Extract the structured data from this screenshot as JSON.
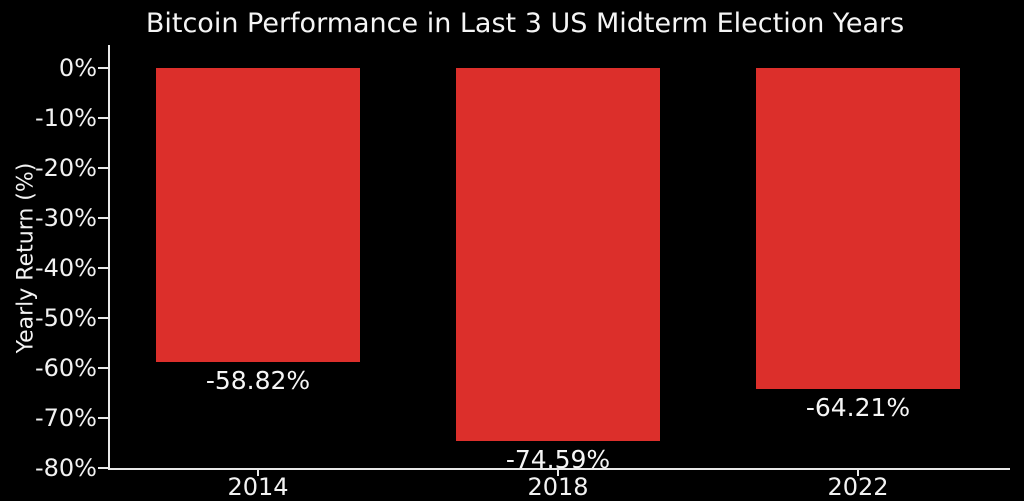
{
  "chart_data": {
    "type": "bar",
    "title": "Bitcoin Performance in Last 3 US Midterm Election Years",
    "ylabel": "Yearly Return (%)",
    "xlabel": "",
    "categories": [
      "2014",
      "2018",
      "2022"
    ],
    "values": [
      -58.82,
      -74.59,
      -64.21
    ],
    "bar_labels": [
      "-58.82%",
      "-74.59%",
      "-64.21%"
    ],
    "y_ticks": [
      0,
      -10,
      -20,
      -30,
      -40,
      -50,
      -60,
      -70,
      -80
    ],
    "y_tick_labels": [
      "0%",
      "-10%",
      "-20%",
      "-30%",
      "-40%",
      "-50%",
      "-60%",
      "-70%",
      "-80%"
    ],
    "ylim": [
      -80,
      4.6
    ],
    "grid": false,
    "legend_position": "none",
    "colors": {
      "background": "#000000",
      "bar": "#dc2f2b",
      "text": "#f2f2f2",
      "axis": "#e9e9e9"
    }
  }
}
